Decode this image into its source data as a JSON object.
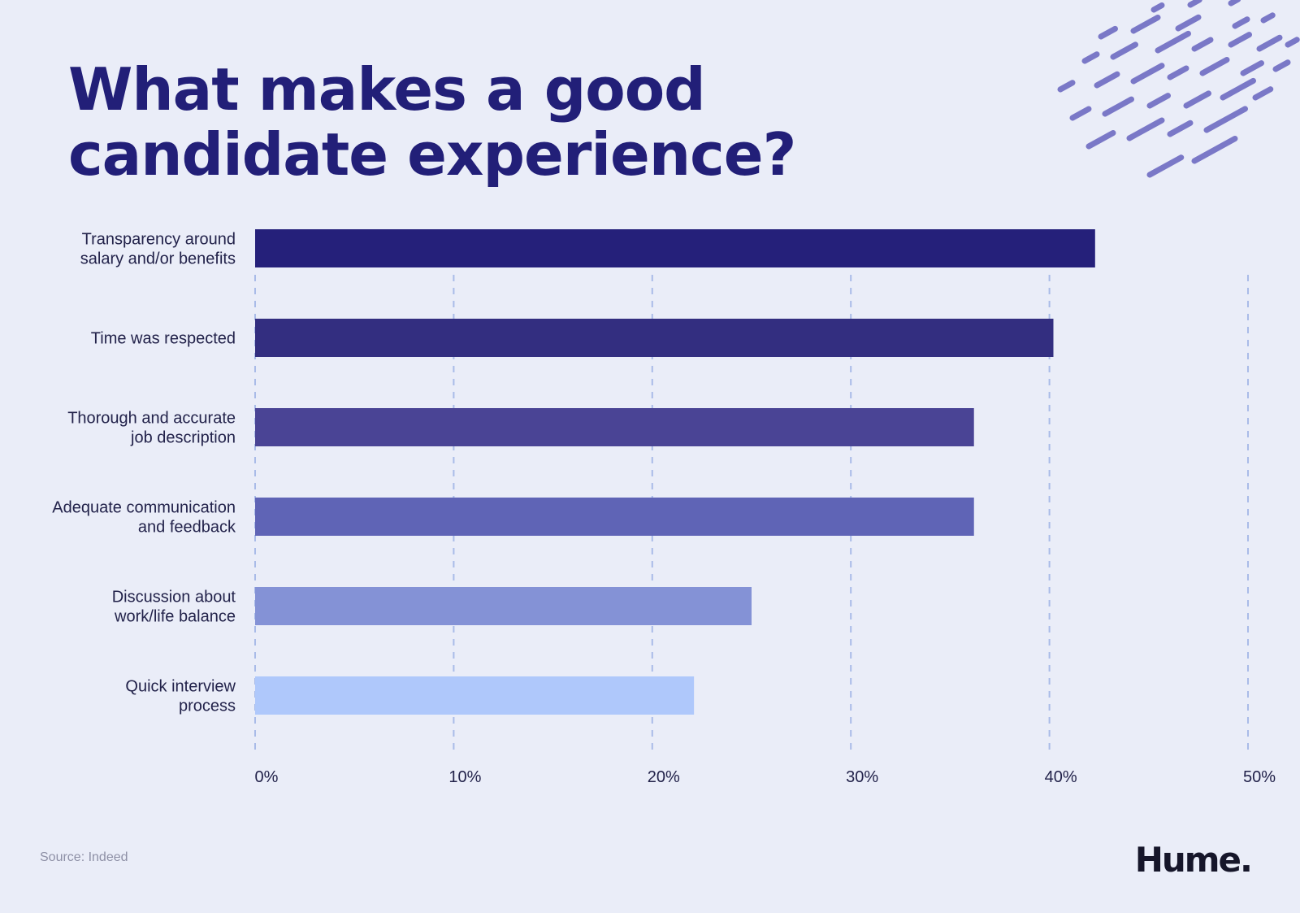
{
  "title": [
    "What makes a good",
    "candidate experience?"
  ],
  "source": "Source: Indeed",
  "logo": "Hume.",
  "decoration_icon": "diagonal-dash-pattern-icon",
  "colors": {
    "background": "#eaedf8",
    "title": "#221f78",
    "grid": "#a9bbe8",
    "decoration": "#7a78c7"
  },
  "chart_data": {
    "type": "bar",
    "orientation": "horizontal",
    "title": "What makes a good candidate experience?",
    "categories": [
      [
        "Transparency around",
        "salary and/or benefits"
      ],
      [
        "Time was respected"
      ],
      [
        "Thorough and accurate",
        "job description"
      ],
      [
        "Adequate communication",
        "and feedback"
      ],
      [
        "Discussion about",
        "work/life balance"
      ],
      [
        "Quick interview",
        "process"
      ]
    ],
    "values": [
      42.3,
      40.2,
      36.2,
      36.2,
      25.0,
      22.1
    ],
    "bar_colors": [
      "#25207a",
      "#332e80",
      "#4a4495",
      "#5f64b6",
      "#8492d6",
      "#afc8fb"
    ],
    "xlim": [
      0,
      50
    ],
    "xticks": [
      0,
      10,
      20,
      30,
      40,
      50
    ],
    "xtick_labels": [
      "0%",
      "10%",
      "20%",
      "30%",
      "40%",
      "50%"
    ],
    "grid": true,
    "xlabel": "",
    "ylabel": ""
  }
}
